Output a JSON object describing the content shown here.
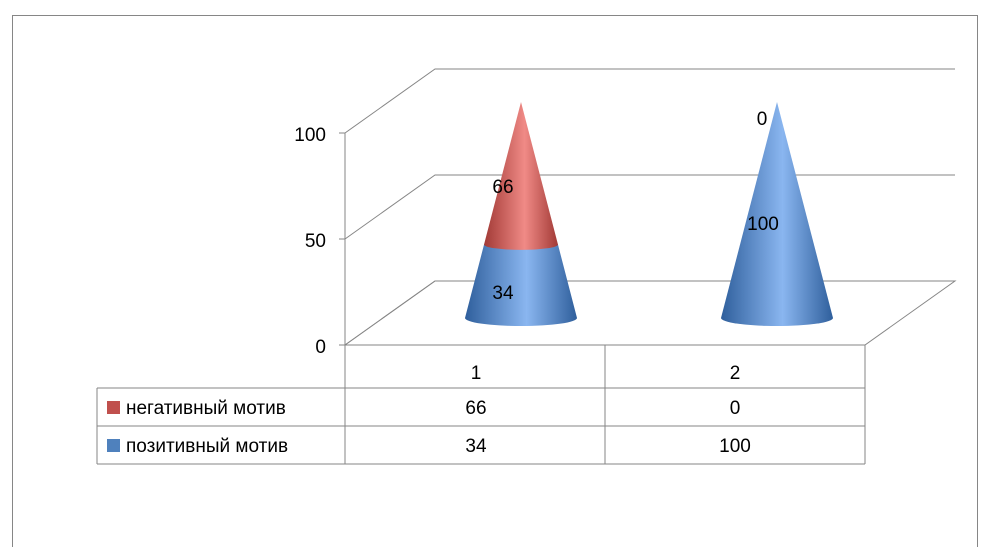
{
  "chart_data": {
    "type": "bar",
    "style": "3d-cone-stacked",
    "categories": [
      "1",
      "2"
    ],
    "series": [
      {
        "name": "позитивный мотив",
        "values": [
          34,
          100
        ],
        "color": "#4f81bd"
      },
      {
        "name": "негативный мотив",
        "values": [
          66,
          0
        ],
        "color": "#c0504d"
      }
    ],
    "ylim": [
      0,
      100
    ],
    "yticks": [
      "0",
      "50",
      "100"
    ],
    "grid": true,
    "legend": "data-table",
    "table": {
      "rows": [
        {
          "label": "негативный мотив",
          "color": "#c0504d",
          "values": [
            "66",
            "0"
          ]
        },
        {
          "label": "позитивный мотив",
          "color": "#4f81bd",
          "values": [
            "34",
            "100"
          ]
        }
      ]
    },
    "data_labels": [
      {
        "category": "1",
        "series": "позитивный мотив",
        "text": "34"
      },
      {
        "category": "1",
        "series": "негативный мотив",
        "text": "66"
      },
      {
        "category": "2",
        "series": "позитивный мотив",
        "text": "100"
      },
      {
        "category": "2",
        "series": "негативный мотив",
        "text": "0"
      }
    ]
  }
}
